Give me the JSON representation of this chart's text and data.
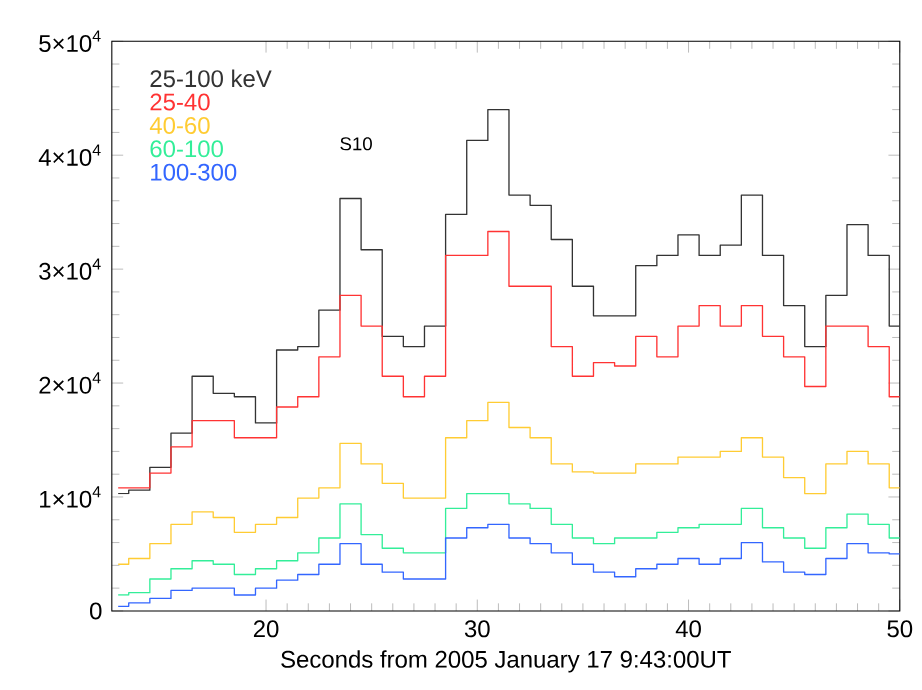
{
  "chart_data": {
    "type": "step",
    "xlabel": "Seconds from 2005 January 17 9:43:00UT",
    "x": [
      13,
      14,
      15,
      16,
      17,
      18,
      19,
      20,
      21,
      22,
      23,
      24,
      25,
      26,
      27,
      28,
      29,
      30,
      31,
      32,
      33,
      34,
      35,
      36,
      37,
      38,
      39,
      40,
      41,
      42,
      43,
      44,
      45,
      46,
      47,
      48,
      49,
      50
    ],
    "series": [
      {
        "name": "25-100 keV",
        "color": "#333333",
        "values": [
          10300,
          10600,
          12600,
          15600,
          20600,
          19100,
          18800,
          16500,
          22900,
          23200,
          26400,
          36200,
          31700,
          24100,
          23200,
          25000,
          34800,
          41300,
          44000,
          36500,
          35600,
          32600,
          28500,
          25900,
          25900,
          30300,
          31200,
          33000,
          31200,
          32100,
          36500,
          31200,
          26800,
          23200,
          27700,
          33900,
          31200,
          25000
        ]
      },
      {
        "name": "25-40",
        "color": "#ff3333",
        "values": [
          10800,
          10800,
          12100,
          14400,
          16700,
          16700,
          15200,
          15200,
          17900,
          18800,
          22300,
          27700,
          25000,
          20600,
          18800,
          20600,
          31200,
          31200,
          33300,
          28500,
          28500,
          23200,
          20600,
          21800,
          21500,
          24100,
          22300,
          25000,
          26800,
          25000,
          26800,
          24100,
          22300,
          19700,
          25000,
          25000,
          23200,
          18800
        ]
      },
      {
        "name": "40-60",
        "color": "#ffcc33",
        "values": [
          4100,
          4600,
          5900,
          7600,
          8700,
          8200,
          6900,
          7600,
          8200,
          9900,
          10800,
          14700,
          12900,
          11200,
          9900,
          9900,
          15200,
          16700,
          18300,
          16100,
          15200,
          12900,
          12200,
          12100,
          12100,
          12900,
          12900,
          13500,
          13500,
          14000,
          15200,
          13500,
          11700,
          10300,
          12900,
          14000,
          12900,
          10800
        ]
      },
      {
        "name": "60-100",
        "color": "#33ee99",
        "values": [
          1400,
          1600,
          2800,
          3700,
          4400,
          4100,
          3200,
          3700,
          4400,
          5100,
          6400,
          9400,
          6700,
          5500,
          5100,
          5100,
          9000,
          10300,
          10300,
          9400,
          9000,
          7600,
          6400,
          5900,
          6400,
          6400,
          6900,
          7300,
          7600,
          7600,
          9000,
          7300,
          6400,
          5500,
          7300,
          8500,
          7600,
          6400
        ]
      },
      {
        "name": "100-300",
        "color": "#3366ff",
        "values": [
          400,
          700,
          1100,
          1800,
          2000,
          2000,
          1400,
          2000,
          2700,
          3200,
          4100,
          5900,
          4100,
          3400,
          2800,
          2800,
          6400,
          7300,
          7600,
          6400,
          5900,
          5100,
          4100,
          3400,
          3000,
          3700,
          4100,
          4600,
          4100,
          4600,
          6000,
          4300,
          3400,
          3200,
          4600,
          5900,
          5100,
          5000
        ]
      }
    ],
    "xlim": [
      12.7,
      50
    ],
    "xticks": [
      20,
      30,
      40,
      50
    ],
    "ylim": [
      0,
      50000
    ],
    "yticks": [
      0,
      {
        "value": 10000,
        "label": "1×10$^{4}$"
      },
      {
        "value": 20000,
        "label": "2×10$^{4}$"
      },
      {
        "value": 30000,
        "label": "3×10$^{4}$"
      },
      {
        "value": 40000,
        "label": "4×10$^{4}$"
      },
      {
        "value": 50000,
        "label": "5×10$^{4}$"
      }
    ],
    "annotations": [
      "S10"
    ],
    "legend": "top left"
  }
}
